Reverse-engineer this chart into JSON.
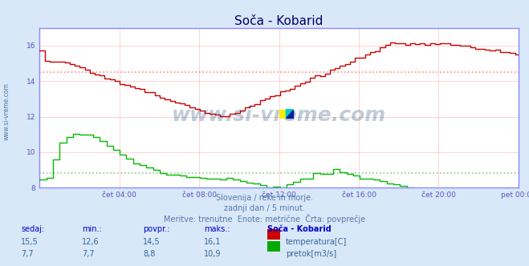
{
  "title": "Soča - Kobarid",
  "bg_color": "#d8e8f8",
  "plot_bg_color": "#ffffff",
  "grid_color": "#ffb0b0",
  "x_label_color": "#5555bb",
  "subtitle_lines": [
    "Slovenija / reke in morje.",
    "zadnji dan / 5 minut.",
    "Meritve: trenutne  Enote: metrične  Črta: povprečje"
  ],
  "table_headers": [
    "sedaj:",
    "min.:",
    "povpr.:",
    "maks.:",
    "Soča - Kobarid"
  ],
  "table_row1": [
    "15,5",
    "12,6",
    "14,5",
    "16,1"
  ],
  "table_row2": [
    "7,7",
    "7,7",
    "8,8",
    "10,9"
  ],
  "legend_labels": [
    "temperatura[C]",
    "pretok[m3/s]"
  ],
  "legend_colors": [
    "#cc0000",
    "#00aa00"
  ],
  "temp_avg": 14.5,
  "flow_avg": 8.8,
  "temp_color": "#cc0000",
  "flow_color": "#00bb00",
  "avg_line_color_temp": "#ff8888",
  "avg_line_color_flow": "#88cc88",
  "axis_line_color": "#8888ff",
  "watermark": "www.si-vreme.com",
  "watermark_color": "#1a4a7a",
  "watermark_alpha": 0.28,
  "side_text": "www.si-vreme.com",
  "title_color": "#000066",
  "title_fontsize": 11,
  "subtitle_color": "#5577aa",
  "table_header_color": "#0000cc",
  "table_value_color": "#336699"
}
